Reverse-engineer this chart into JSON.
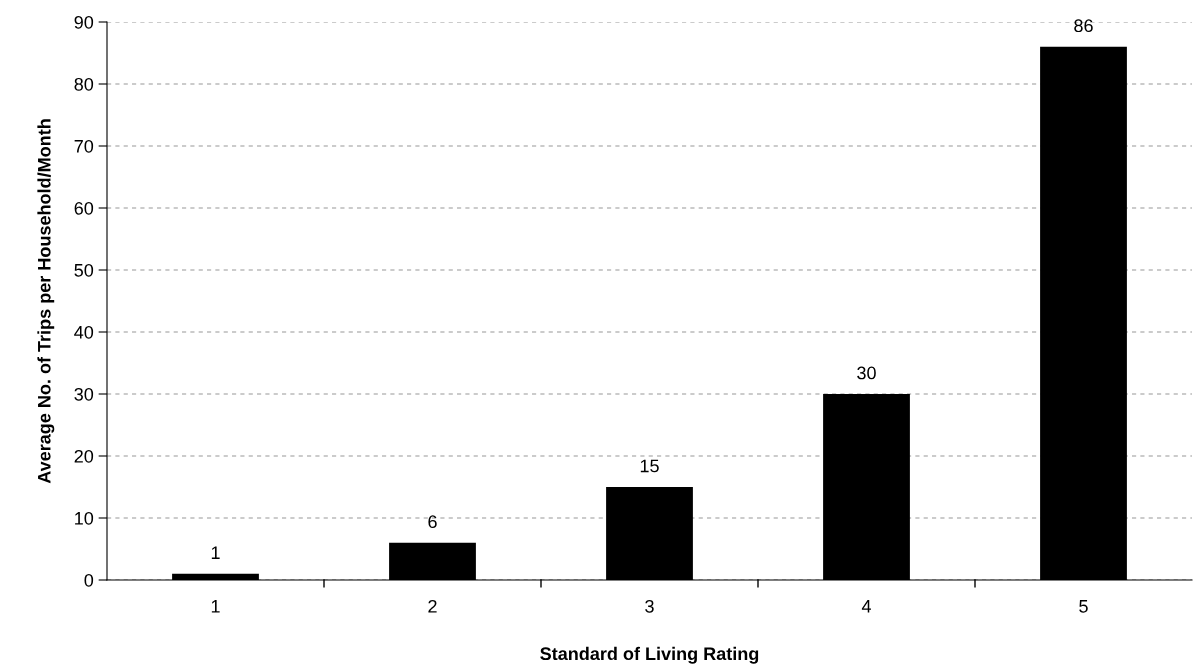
{
  "chart_data": {
    "type": "bar",
    "xlabel": "Standard of Living Rating",
    "ylabel": "Average No. of Trips per Household/Month",
    "categories": [
      "1",
      "2",
      "3",
      "4",
      "5"
    ],
    "values": [
      1,
      6,
      15,
      30,
      86
    ],
    "color": "#000000",
    "ylim": [
      0,
      90
    ],
    "yticks": [
      0,
      10,
      20,
      30,
      40,
      50,
      60,
      70,
      80,
      90
    ],
    "grid": "y",
    "data_labels": true
  }
}
